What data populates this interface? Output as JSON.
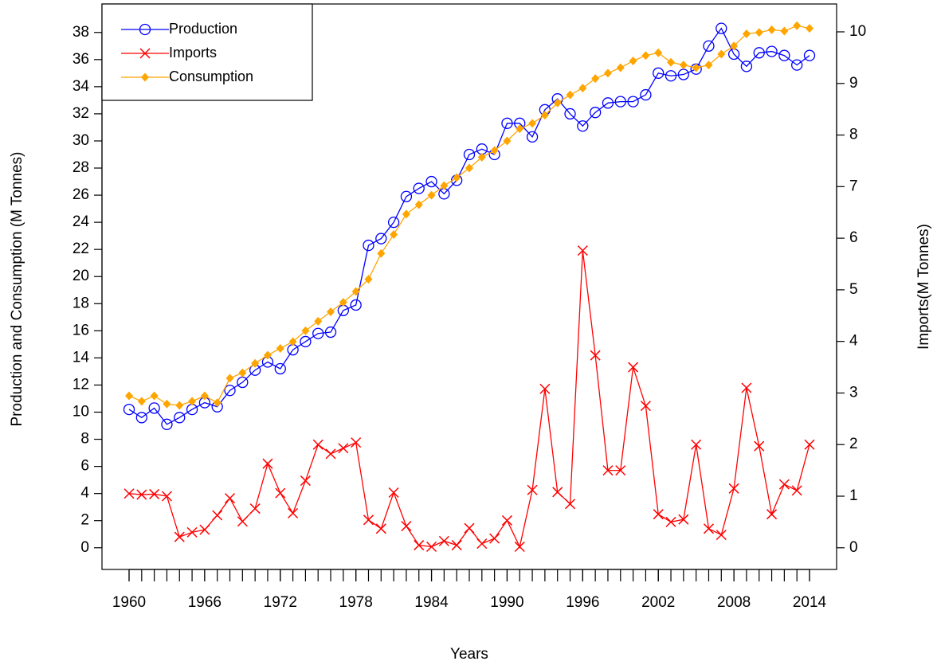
{
  "chart_data": {
    "type": "line",
    "x_label": "Years",
    "y_label": "Production and Consumption (M Tonnes)",
    "y2_label": "Imports(M Tonnes)",
    "x": [
      1960,
      1961,
      1962,
      1963,
      1964,
      1965,
      1966,
      1967,
      1968,
      1969,
      1970,
      1971,
      1972,
      1973,
      1974,
      1975,
      1976,
      1977,
      1978,
      1979,
      1980,
      1981,
      1982,
      1983,
      1984,
      1985,
      1986,
      1987,
      1988,
      1989,
      1990,
      1991,
      1992,
      1993,
      1994,
      1995,
      1996,
      1997,
      1998,
      1999,
      2000,
      2001,
      2002,
      2003,
      2004,
      2005,
      2006,
      2007,
      2008,
      2009,
      2010,
      2011,
      2012,
      2013,
      2014
    ],
    "series": [
      {
        "name": "Production",
        "color": "#0000ff",
        "marker": "circle",
        "values": [
          10.2,
          9.6,
          10.3,
          9.1,
          9.6,
          10.2,
          10.7,
          10.4,
          11.6,
          12.2,
          13.1,
          13.7,
          13.2,
          14.6,
          15.2,
          15.8,
          15.9,
          17.5,
          17.9,
          22.3,
          22.8,
          24.0,
          25.9,
          26.5,
          27.0,
          26.1,
          27.1,
          29.0,
          29.4,
          29.0,
          31.3,
          31.3,
          30.3,
          32.3,
          33.1,
          32.0,
          31.1,
          32.1,
          32.8,
          32.9,
          32.9,
          33.4,
          35.0,
          34.8,
          34.9,
          35.3,
          37.0,
          38.3,
          36.4,
          35.5,
          36.5,
          36.6,
          36.3,
          35.6,
          36.3
        ]
      },
      {
        "name": "Imports",
        "color": "#ff0000",
        "marker": "cross",
        "axis": "y2",
        "values": [
          1.05,
          1.03,
          1.04,
          1.0,
          0.21,
          0.3,
          0.35,
          0.63,
          0.96,
          0.51,
          0.76,
          1.63,
          1.06,
          0.67,
          1.3,
          2.0,
          1.82,
          1.93,
          2.04,
          0.54,
          0.37,
          1.07,
          0.42,
          0.05,
          0.02,
          0.13,
          0.05,
          0.38,
          0.08,
          0.18,
          0.53,
          0.02,
          1.12,
          3.08,
          1.08,
          0.85,
          5.76,
          3.73,
          1.5,
          1.5,
          3.5,
          2.75,
          0.65,
          0.5,
          0.55,
          2.0,
          0.37,
          0.25,
          1.15,
          3.1,
          1.97,
          0.65,
          1.23,
          1.11,
          2.0
        ]
      },
      {
        "name": "Consumption",
        "color": "#ffa500",
        "marker": "diamond",
        "values": [
          11.2,
          10.8,
          11.2,
          10.6,
          10.5,
          10.8,
          11.2,
          10.7,
          12.5,
          12.9,
          13.6,
          14.2,
          14.7,
          15.2,
          16.0,
          16.7,
          17.4,
          18.1,
          18.9,
          19.8,
          21.7,
          23.1,
          24.6,
          25.3,
          26.0,
          26.7,
          27.3,
          28.0,
          28.8,
          29.3,
          30.0,
          30.9,
          31.3,
          31.9,
          32.8,
          33.4,
          33.9,
          34.6,
          35.0,
          35.4,
          35.9,
          36.3,
          36.5,
          35.8,
          35.6,
          35.4,
          35.6,
          36.4,
          37.0,
          37.9,
          38.0,
          38.2,
          38.1,
          38.5,
          38.3
        ]
      }
    ],
    "xlim": [
      1957.85,
      2016.15
    ],
    "xticks": [
      1960,
      1966,
      1972,
      1978,
      1984,
      1990,
      1996,
      2002,
      2008,
      2014
    ],
    "ylim": [
      -1.6,
      40.1
    ],
    "yticks": [
      0,
      2,
      4,
      6,
      8,
      10,
      12,
      14,
      16,
      18,
      20,
      22,
      24,
      26,
      28,
      30,
      32,
      34,
      36,
      38
    ],
    "y2lim": [
      -0.42,
      10.54
    ],
    "y2ticks": [
      0,
      1,
      2,
      3,
      4,
      5,
      6,
      7,
      8,
      9,
      10
    ],
    "legend": "top-left"
  }
}
